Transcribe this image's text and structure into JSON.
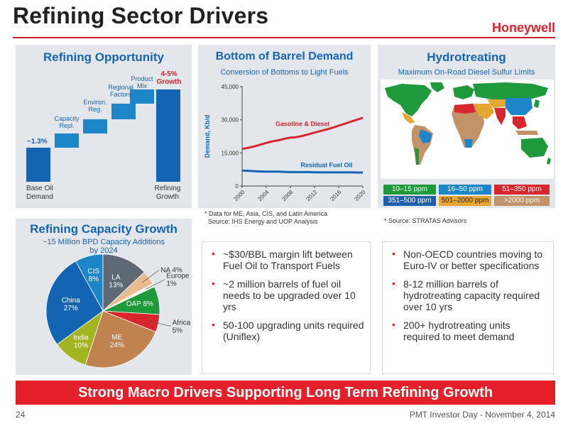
{
  "header": {
    "title": "Refining Sector Drivers",
    "logo": "Honeywell"
  },
  "panels": {
    "refining_opportunity": {
      "title": "Refining Opportunity",
      "steps": {
        "base_label": "Base Oil\nDemand",
        "base_value": "~1.3%",
        "capacity": "Capacity\nRepl.",
        "environ": "Environ.\nReg.",
        "regional": "Regional\nFactors",
        "product": "Product\nMix",
        "growth_value": "4-5%\nGrowth",
        "growth_label": "Refining\nGrowth"
      }
    },
    "bottom_of_barrel": {
      "title": "Bottom of Barrel Demand",
      "subtitle": "Conversion of Bottoms to Light Fuels",
      "note": "* Data for ME, Asia, CIS, and Latin America\n  Source: IHS Energy and UOP Analysis"
    },
    "hydrotreating": {
      "title": "Hydrotreating",
      "subtitle": "Maximum On-Road Diesel Sulfur Limits",
      "note": "* Source: STRATAS Advisors",
      "legend": [
        {
          "label": "10–15 ppm",
          "color": "#1e9a3c",
          "text_color": "#ffffff"
        },
        {
          "label": "16–50 ppm",
          "color": "#1d86c9",
          "text_color": "#ffffff"
        },
        {
          "label": "51–350 ppm",
          "color": "#d7262e",
          "text_color": "#ffffff"
        },
        {
          "label": "351–500 ppm",
          "color": "#1d5fa8",
          "text_color": "#ffffff"
        },
        {
          "label": "501–2000 ppm",
          "color": "#e7a631",
          "text_color": "#222222"
        },
        {
          "label": ">2000 ppm",
          "color": "#c29368",
          "text_color": "#ffffff"
        }
      ]
    },
    "capacity_growth": {
      "title": "Refining Capacity Growth",
      "subtitle": "~15 Million BPD Capacity Additions\nby 2024"
    }
  },
  "bullets_middle": [
    "~$30/BBL margin lift between Fuel Oil to Transport Fuels",
    "~2 million barrels of fuel oil needs to be upgraded over 10 yrs",
    "50-100 upgrading units required (Uniflex)"
  ],
  "bullets_right": [
    "Non-OECD countries moving to Euro-IV or better specifications",
    "8-12 million barrels of hydrotreating capacity required over 10 yrs",
    "200+ hydrotreating units required to meet demand"
  ],
  "banner": "Strong Macro Drivers Supporting Long Term Refining Growth",
  "footer": {
    "page": "24",
    "event": "PMT Investor Day - November 4, 2014"
  },
  "chart_data": [
    {
      "type": "line",
      "title": "Bottom of Barrel Demand",
      "subtitle": "Conversion of Bottoms to Light Fuels",
      "xlabel": "",
      "ylabel": "Demand, Kb/d",
      "ylim": [
        0,
        45000
      ],
      "yticks": [
        "0",
        "15,000",
        "30,000",
        "45,000"
      ],
      "xticks": [
        "2000",
        "2004",
        "2008",
        "2012",
        "2016",
        "2020"
      ],
      "x": [
        2000,
        2001,
        2002,
        2003,
        2004,
        2005,
        2006,
        2007,
        2008,
        2009,
        2010,
        2011,
        2012,
        2013,
        2014,
        2015,
        2016,
        2017,
        2018,
        2019,
        2020
      ],
      "series": [
        {
          "name": "Gasoline & Diesel",
          "color": "#d7262e",
          "values": [
            16800,
            17300,
            17900,
            18700,
            19500,
            20200,
            20700,
            21400,
            21900,
            22100,
            22700,
            23400,
            24200,
            24900,
            25600,
            26400,
            27300,
            28200,
            29100,
            30000,
            30900
          ]
        },
        {
          "name": "Residual Fuel Oil",
          "color": "#1464b4",
          "values": [
            7000,
            6900,
            6700,
            6600,
            6500,
            6500,
            6500,
            6400,
            6300,
            6300,
            6300,
            6300,
            6200,
            6200,
            6200,
            6200,
            6200,
            6200,
            6200,
            6100,
            6100
          ]
        }
      ],
      "grid": false,
      "legend": "inline labels"
    },
    {
      "type": "pie",
      "title": "Refining Capacity Growth",
      "subtitle": "~15 Million BPD Capacity Additions by 2024",
      "slices": [
        {
          "label": "CIS",
          "value": 8,
          "display": "CIS\n8%",
          "color": "#1d86c9"
        },
        {
          "label": "LA",
          "value": 13,
          "display": "LA\n13%",
          "color": "#5d6a76"
        },
        {
          "label": "NA",
          "value": 4,
          "display": "NA 4%",
          "color": "#e9bc8f"
        },
        {
          "label": "Europe",
          "value": 1,
          "display": "Europe\n1%",
          "color": "#f4f4f4"
        },
        {
          "label": "OAP",
          "value": 8,
          "display": "OAP 8%",
          "color": "#1e9a3c"
        },
        {
          "label": "Africa",
          "value": 5,
          "display": "Africa\n5%",
          "color": "#d7262e"
        },
        {
          "label": "ME",
          "value": 24,
          "display": "ME\n24%",
          "color": "#c08350"
        },
        {
          "label": "India",
          "value": 10,
          "display": "India\n10%",
          "color": "#a2b520"
        },
        {
          "label": "China",
          "value": 27,
          "display": "China\n27%",
          "color": "#1464b4"
        }
      ]
    }
  ]
}
